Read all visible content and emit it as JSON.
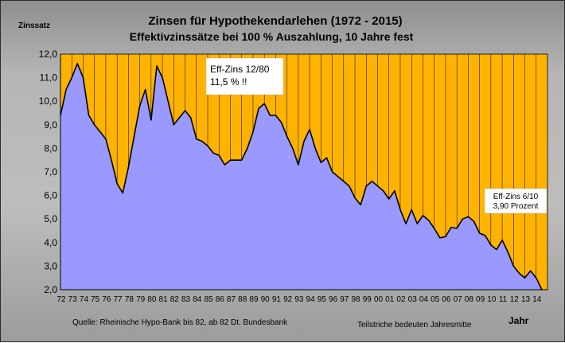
{
  "chart_data": {
    "type": "area",
    "title": "Zinsen für Hypothekendarlehen (1972 - 2015)",
    "subtitle": "Effektivzinssätze bei 100 %  Auszahlung,   10 Jahre fest",
    "ylabel": "Zinssatz",
    "xlabel": "Jahr",
    "ylim": [
      2.0,
      12.0
    ],
    "xlim": [
      1972,
      2015
    ],
    "grid": "vertical",
    "y_ticks": [
      "12,0",
      "11,0",
      "10,0",
      "9,0",
      "8,0",
      "7,0",
      "6,0",
      "5,0",
      "4,0",
      "3,0",
      "2,0"
    ],
    "x_ticks": [
      "72",
      "73",
      "74",
      "75",
      "76",
      "77",
      "78",
      "79",
      "80",
      "81",
      "82",
      "83",
      "84",
      "85",
      "86",
      "87",
      "88",
      "89",
      "90",
      "91",
      "92",
      "93",
      "94",
      "95",
      "96",
      "97",
      "98",
      "99",
      "00",
      "01",
      "02",
      "03",
      "04",
      "05",
      "06",
      "07",
      "08",
      "09",
      "10",
      "11",
      "12",
      "13",
      "14"
    ],
    "colors": {
      "above": "#FFB300",
      "fill": "#9999FF",
      "line": "#000000",
      "grid": "#000000"
    },
    "x": [
      1972.0,
      1972.5,
      1973.0,
      1973.5,
      1974.0,
      1974.5,
      1975.0,
      1975.5,
      1976.0,
      1976.5,
      1977.0,
      1977.5,
      1978.0,
      1978.5,
      1979.0,
      1979.5,
      1980.0,
      1980.5,
      1981.0,
      1981.5,
      1982.0,
      1982.5,
      1983.0,
      1983.5,
      1984.0,
      1984.5,
      1985.0,
      1985.5,
      1986.0,
      1986.5,
      1987.0,
      1987.5,
      1988.0,
      1988.5,
      1989.0,
      1989.5,
      1990.0,
      1990.5,
      1991.0,
      1991.5,
      1992.0,
      1992.5,
      1993.0,
      1993.5,
      1994.0,
      1994.5,
      1995.0,
      1995.5,
      1996.0,
      1996.5,
      1997.0,
      1997.5,
      1998.0,
      1998.5,
      1999.0,
      1999.5,
      2000.0,
      2000.5,
      2001.0,
      2001.5,
      2002.0,
      2002.5,
      2003.0,
      2003.5,
      2004.0,
      2004.5,
      2005.0,
      2005.5,
      2006.0,
      2006.5,
      2007.0,
      2007.5,
      2008.0,
      2008.5,
      2009.0,
      2009.5,
      2010.0,
      2010.5,
      2011.0,
      2011.5,
      2012.0,
      2012.5,
      2013.0,
      2013.5,
      2014.0,
      2014.5
    ],
    "y": [
      9.4,
      10.5,
      11.0,
      11.6,
      11.0,
      9.4,
      9.0,
      8.7,
      8.4,
      7.5,
      6.5,
      6.1,
      7.2,
      8.5,
      9.8,
      10.5,
      9.2,
      11.5,
      11.0,
      10.0,
      9.0,
      9.3,
      9.6,
      9.3,
      8.4,
      8.3,
      8.1,
      7.8,
      7.7,
      7.3,
      7.5,
      7.5,
      7.5,
      8.0,
      8.7,
      9.7,
      9.9,
      9.4,
      9.4,
      9.1,
      8.5,
      8.0,
      7.3,
      8.3,
      8.8,
      8.0,
      7.4,
      7.6,
      7.0,
      6.8,
      6.6,
      6.4,
      5.9,
      5.6,
      6.4,
      6.6,
      6.4,
      6.2,
      5.85,
      6.2,
      5.4,
      4.8,
      5.4,
      4.8,
      5.15,
      4.95,
      4.6,
      4.2,
      4.25,
      4.65,
      4.6,
      5.0,
      5.1,
      4.9,
      4.4,
      4.3,
      3.9,
      3.7,
      4.1,
      3.6,
      3.0,
      2.7,
      2.5,
      2.8,
      2.5,
      2.0
    ]
  },
  "annotations": {
    "peak": {
      "line1": "Eff-Zins 12/80",
      "line2": "11,5 %  !!"
    },
    "latest": {
      "line1": "Eff-Zins 6/10",
      "line2": "3,90 Prozent"
    }
  },
  "footer": {
    "source": "Quelle: Rheinische Hypo-Bank bis 82, ab 82 Dt. Bundesbank",
    "note": "Teilstriche bedeuten Jahresmitte"
  }
}
